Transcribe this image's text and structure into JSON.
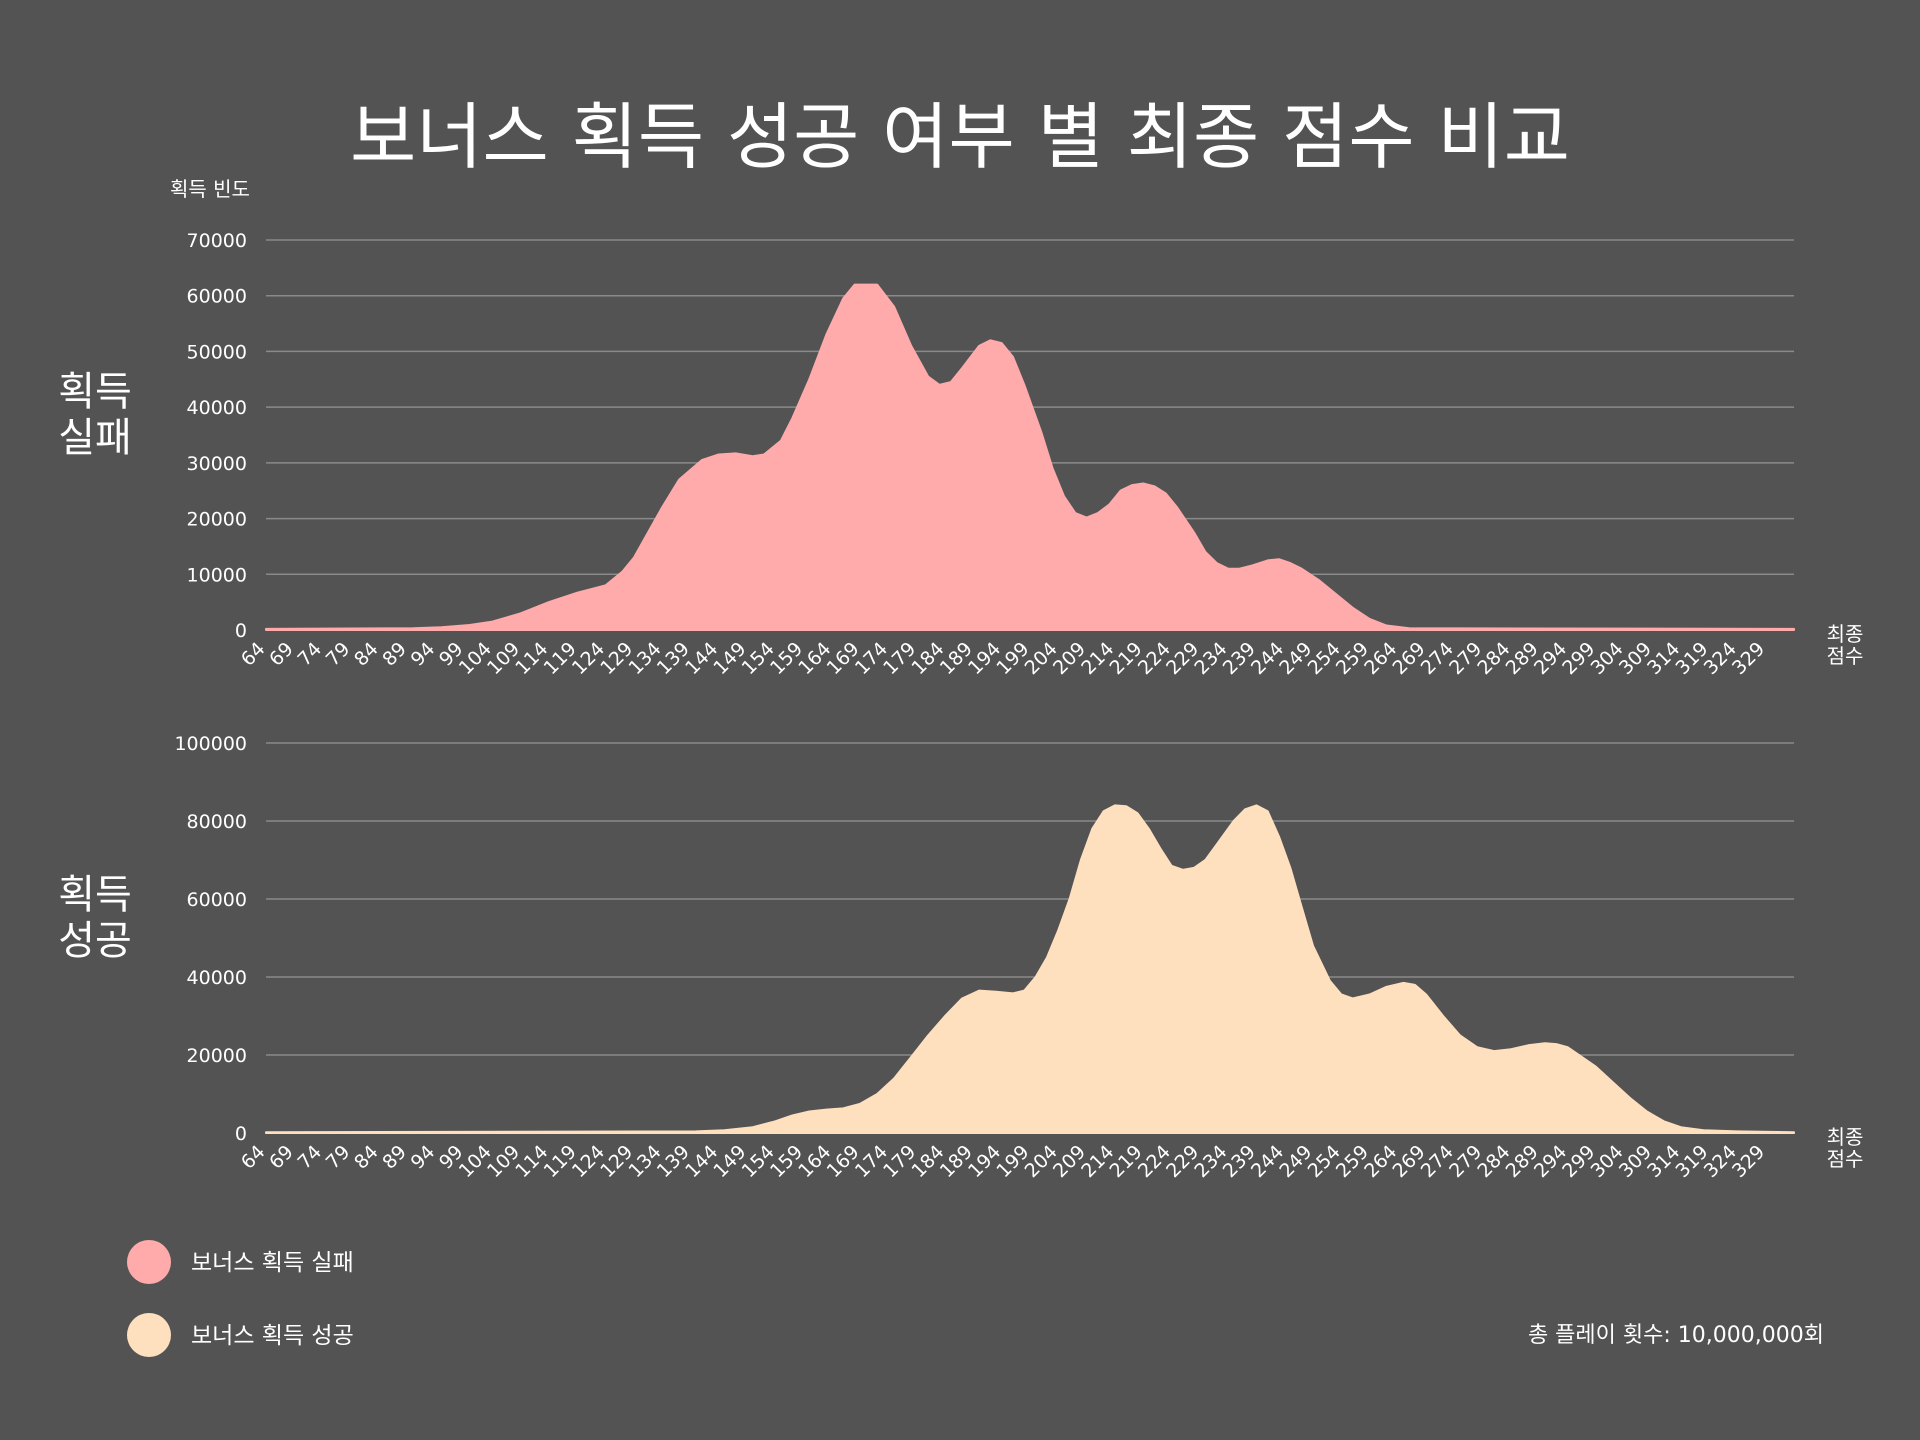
{
  "chart_data": {
    "type": "area",
    "title": "보너스 획득 성공 여부 별 최종 점수 비교",
    "x_tick_labels": [
      "64",
      "69",
      "74",
      "79",
      "84",
      "89",
      "94",
      "99",
      "104",
      "109",
      "114",
      "119",
      "124",
      "129",
      "134",
      "139",
      "144",
      "149",
      "154",
      "159",
      "164",
      "169",
      "174",
      "179",
      "184",
      "189",
      "194",
      "199",
      "204",
      "209",
      "214",
      "219",
      "224",
      "229",
      "234",
      "239",
      "244",
      "249",
      "254",
      "259",
      "264",
      "269",
      "274",
      "279",
      "284",
      "289",
      "294",
      "299",
      "304",
      "309",
      "314",
      "319",
      "324",
      "329"
    ],
    "xlim": [
      64,
      334
    ],
    "x_axis_label": "최종\n점수",
    "panels": [
      {
        "row_label": "획득\n실패",
        "ylabel": "획득 빈도",
        "ylim": [
          0,
          70000
        ],
        "yticks": [
          0,
          10000,
          20000,
          30000,
          40000,
          50000,
          60000,
          70000
        ],
        "series_index": 0
      },
      {
        "row_label": "획득\n성공",
        "ylabel": "",
        "ylim": [
          0,
          100000
        ],
        "yticks": [
          0,
          20000,
          40000,
          60000,
          80000,
          100000
        ],
        "series_index": 1
      }
    ],
    "series": [
      {
        "name": "보너스 획득 실패",
        "color": "#ffaaab",
        "points": [
          [
            64,
            200
          ],
          [
            90,
            300
          ],
          [
            95,
            500
          ],
          [
            100,
            900
          ],
          [
            104,
            1500
          ],
          [
            109,
            3000
          ],
          [
            114,
            5000
          ],
          [
            119,
            6700
          ],
          [
            124,
            8000
          ],
          [
            127,
            10500
          ],
          [
            129,
            13000
          ],
          [
            134,
            22000
          ],
          [
            137,
            27000
          ],
          [
            141,
            30500
          ],
          [
            144,
            31500
          ],
          [
            147,
            31700
          ],
          [
            150,
            31200
          ],
          [
            152,
            31500
          ],
          [
            155,
            34000
          ],
          [
            157,
            38000
          ],
          [
            160,
            45000
          ],
          [
            163,
            53000
          ],
          [
            166,
            59500
          ],
          [
            168,
            62000
          ],
          [
            172,
            62000
          ],
          [
            175,
            58000
          ],
          [
            178,
            51000
          ],
          [
            181,
            45500
          ],
          [
            183,
            44000
          ],
          [
            185,
            44500
          ],
          [
            187,
            47000
          ],
          [
            190,
            51000
          ],
          [
            192,
            52000
          ],
          [
            194,
            51500
          ],
          [
            196,
            49000
          ],
          [
            198,
            44000
          ],
          [
            201,
            35500
          ],
          [
            203,
            29000
          ],
          [
            205,
            24000
          ],
          [
            207,
            21000
          ],
          [
            209,
            20200
          ],
          [
            211,
            21000
          ],
          [
            213,
            22500
          ],
          [
            215,
            25000
          ],
          [
            217,
            26000
          ],
          [
            219,
            26300
          ],
          [
            221,
            25800
          ],
          [
            223,
            24500
          ],
          [
            225,
            22000
          ],
          [
            228,
            17500
          ],
          [
            230,
            14000
          ],
          [
            232,
            12000
          ],
          [
            234,
            11000
          ],
          [
            236,
            11000
          ],
          [
            238,
            11500
          ],
          [
            241,
            12500
          ],
          [
            243,
            12700
          ],
          [
            245,
            12000
          ],
          [
            247,
            11000
          ],
          [
            250,
            9000
          ],
          [
            253,
            6500
          ],
          [
            256,
            4000
          ],
          [
            259,
            2000
          ],
          [
            262,
            800
          ],
          [
            266,
            300
          ],
          [
            334,
            200
          ]
        ]
      },
      {
        "name": "보너스 획득 성공",
        "color": "#ffe0be",
        "points": [
          [
            64,
            200
          ],
          [
            140,
            400
          ],
          [
            145,
            700
          ],
          [
            150,
            1500
          ],
          [
            154,
            3000
          ],
          [
            157,
            4500
          ],
          [
            160,
            5500
          ],
          [
            163,
            6000
          ],
          [
            166,
            6300
          ],
          [
            169,
            7500
          ],
          [
            172,
            10000
          ],
          [
            175,
            14000
          ],
          [
            178,
            19500
          ],
          [
            181,
            25000
          ],
          [
            184,
            30000
          ],
          [
            187,
            34500
          ],
          [
            190,
            36500
          ],
          [
            193,
            36200
          ],
          [
            196,
            35800
          ],
          [
            198,
            36500
          ],
          [
            200,
            40000
          ],
          [
            202,
            45000
          ],
          [
            204,
            52000
          ],
          [
            206,
            60000
          ],
          [
            208,
            70000
          ],
          [
            210,
            78000
          ],
          [
            212,
            82500
          ],
          [
            214,
            84000
          ],
          [
            216,
            83800
          ],
          [
            218,
            82000
          ],
          [
            220,
            78000
          ],
          [
            222,
            73000
          ],
          [
            224,
            68500
          ],
          [
            226,
            67500
          ],
          [
            228,
            68000
          ],
          [
            230,
            70000
          ],
          [
            232,
            74000
          ],
          [
            235,
            80000
          ],
          [
            237,
            83000
          ],
          [
            239,
            84000
          ],
          [
            241,
            82500
          ],
          [
            243,
            76000
          ],
          [
            245,
            68000
          ],
          [
            247,
            58000
          ],
          [
            249,
            48000
          ],
          [
            252,
            39000
          ],
          [
            254,
            35500
          ],
          [
            256,
            34500
          ],
          [
            259,
            35500
          ],
          [
            262,
            37500
          ],
          [
            265,
            38500
          ],
          [
            267,
            38000
          ],
          [
            269,
            35500
          ],
          [
            272,
            30000
          ],
          [
            275,
            25000
          ],
          [
            278,
            22000
          ],
          [
            281,
            21000
          ],
          [
            284,
            21500
          ],
          [
            287,
            22500
          ],
          [
            290,
            23000
          ],
          [
            292,
            22800
          ],
          [
            294,
            22000
          ],
          [
            296,
            20000
          ],
          [
            299,
            17000
          ],
          [
            302,
            13000
          ],
          [
            305,
            9000
          ],
          [
            308,
            5500
          ],
          [
            311,
            3000
          ],
          [
            314,
            1500
          ],
          [
            318,
            700
          ],
          [
            324,
            400
          ],
          [
            334,
            200
          ]
        ]
      }
    ],
    "legend": {
      "placement": "bottom-left",
      "entries": [
        "보너스 획득 실패",
        "보너스 획득 성공"
      ]
    }
  },
  "footnote": "총 플레이 횟수: 10,000,000회"
}
